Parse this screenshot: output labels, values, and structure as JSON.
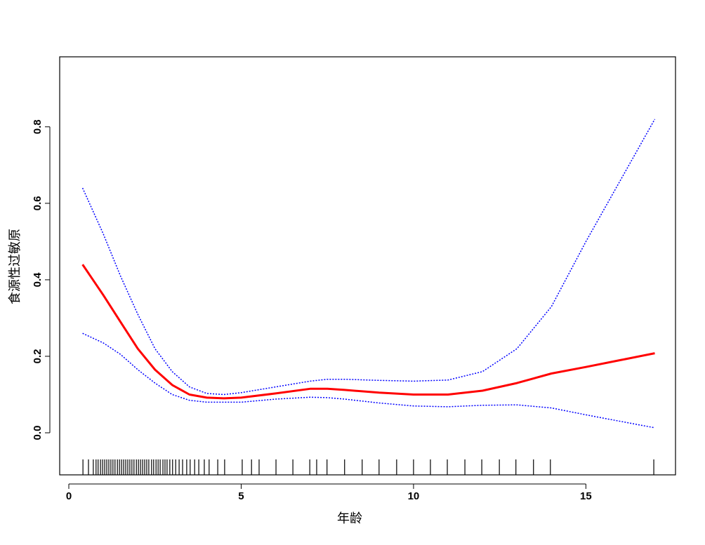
{
  "chart_data": {
    "type": "line",
    "x_label": "年龄",
    "y_label": "食源性过敏原",
    "xlim": [
      -0.265,
      17.6
    ],
    "ylim": [
      -0.11,
      0.983
    ],
    "xticks": [
      0,
      5,
      10,
      15
    ],
    "yticks": [
      {
        "value": 0,
        "label": "0.0"
      },
      0.2,
      0.4,
      0.6,
      0.8
    ],
    "x": [
      0.4,
      1,
      1.5,
      2,
      2.5,
      3,
      3.5,
      4,
      4.5,
      5,
      6,
      7,
      7.5,
      8,
      9,
      10,
      11,
      12,
      13,
      14,
      15,
      16,
      17
    ],
    "series": [
      {
        "color": "#ff0000",
        "style": "solid",
        "values": [
          0.44,
          0.36,
          0.29,
          0.22,
          0.165,
          0.125,
          0.1,
          0.092,
          0.09,
          0.092,
          0.103,
          0.115,
          0.115,
          0.112,
          0.105,
          0.1,
          0.1,
          0.11,
          0.13,
          0.155,
          0.172,
          0.19,
          0.208
        ]
      },
      {
        "color": "#0000ff",
        "style": "dotted",
        "values": [
          0.64,
          0.52,
          0.41,
          0.31,
          0.22,
          0.16,
          0.12,
          0.103,
          0.1,
          0.105,
          0.12,
          0.135,
          0.14,
          0.14,
          0.137,
          0.135,
          0.138,
          0.16,
          0.22,
          0.33,
          0.5,
          0.66,
          0.82
        ]
      },
      {
        "color": "#0000ff",
        "style": "dotted",
        "values": [
          0.26,
          0.235,
          0.205,
          0.165,
          0.13,
          0.1,
          0.085,
          0.08,
          0.08,
          0.08,
          0.088,
          0.093,
          0.092,
          0.088,
          0.078,
          0.07,
          0.068,
          0.072,
          0.073,
          0.065,
          0.047,
          0.03,
          0.013
        ]
      }
    ],
    "rug": [
      0.41,
      0.57,
      0.71,
      0.79,
      0.85,
      0.92,
      0.98,
      1.04,
      1.1,
      1.16,
      1.22,
      1.28,
      1.34,
      1.41,
      1.47,
      1.53,
      1.59,
      1.65,
      1.71,
      1.77,
      1.83,
      1.89,
      1.96,
      2.02,
      2.08,
      2.14,
      2.2,
      2.26,
      2.32,
      2.4,
      2.46,
      2.53,
      2.59,
      2.65,
      2.73,
      2.79,
      2.85,
      2.93,
      3.01,
      3.1,
      3.2,
      3.3,
      3.42,
      3.52,
      3.65,
      3.77,
      3.93,
      4.07,
      4.32,
      4.52,
      5.03,
      5.3,
      5.52,
      6.01,
      6.5,
      6.99,
      7.19,
      7.49,
      8.0,
      8.51,
      9.0,
      9.51,
      10.0,
      10.49,
      10.98,
      11.49,
      11.98,
      12.49,
      12.97,
      13.48,
      13.97,
      16.97
    ]
  }
}
